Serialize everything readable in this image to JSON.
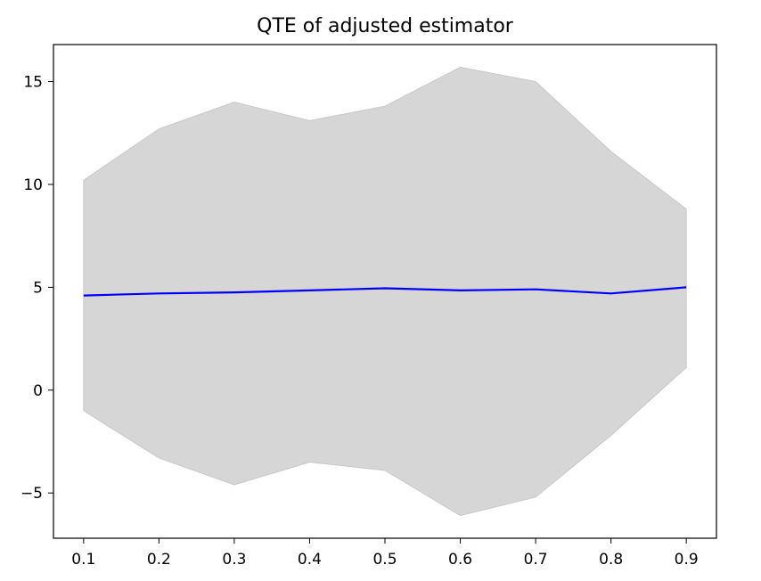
{
  "chart_data": {
    "type": "line",
    "title": "QTE of adjusted estimator",
    "xlabel": "",
    "ylabel": "",
    "x": [
      0.1,
      0.2,
      0.3,
      0.4,
      0.5,
      0.6,
      0.7,
      0.8,
      0.9
    ],
    "x_ticks": [
      "0.1",
      "0.2",
      "0.3",
      "0.4",
      "0.5",
      "0.6",
      "0.7",
      "0.8",
      "0.9"
    ],
    "y_ticks": [
      -5,
      0,
      5,
      10,
      15
    ],
    "y_tick_labels": [
      "−5",
      "0",
      "5",
      "10",
      "15"
    ],
    "xlim": [
      0.06,
      0.94
    ],
    "ylim": [
      -7.2,
      16.8
    ],
    "grid": false,
    "series": [
      {
        "values": [
          4.6,
          4.7,
          4.75,
          4.85,
          4.95,
          4.85,
          4.9,
          4.7,
          5.0
        ],
        "color": "#0000ff"
      }
    ],
    "band": {
      "upper": [
        10.2,
        12.7,
        14.0,
        13.1,
        13.8,
        15.7,
        15.0,
        11.6,
        8.8
      ],
      "lower": [
        -1.0,
        -3.3,
        -4.6,
        -3.5,
        -3.9,
        -6.1,
        -5.2,
        -2.2,
        1.1
      ],
      "color": "#d6d6d6",
      "edge_color": "#c8c8c8"
    }
  }
}
